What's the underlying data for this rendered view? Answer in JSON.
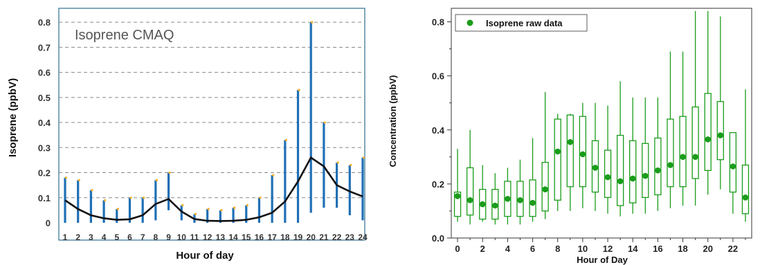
{
  "chart_data": [
    {
      "type": "line",
      "title": "Isoprene CMAQ",
      "xlabel": "Hour of day",
      "ylabel": "Isoprene (ppbV)",
      "ylim": [
        0,
        0.85
      ],
      "yticks": [
        "0",
        "0.1",
        "0.2",
        "0.3",
        "0.4",
        "0.5",
        "0.6",
        "0.7",
        "0.8"
      ],
      "x": [
        1,
        2,
        3,
        4,
        5,
        6,
        7,
        8,
        9,
        10,
        11,
        12,
        13,
        14,
        15,
        16,
        17,
        18,
        19,
        20,
        21,
        22,
        23,
        24
      ],
      "xticks": [
        "1",
        "2",
        "3",
        "4",
        "5",
        "6",
        "7",
        "8",
        "9",
        "10",
        "11",
        "12",
        "13",
        "14",
        "15",
        "16",
        "17",
        "18",
        "19",
        "20",
        "21",
        "22",
        "23",
        "24"
      ],
      "grid": "horizontal dashed",
      "range_bars": {
        "color": "#1f6fb5",
        "high": [
          0.18,
          0.17,
          0.13,
          0.09,
          0.055,
          0.1,
          0.1,
          0.17,
          0.2,
          0.07,
          0.035,
          0.055,
          0.05,
          0.06,
          0.07,
          0.1,
          0.19,
          0.33,
          0.53,
          0.8,
          0.4,
          0.24,
          0.23,
          0.26
        ],
        "low": [
          0.0,
          0.0,
          0.0,
          0.0,
          0.0,
          0.0,
          0.0,
          0.01,
          0.05,
          0.01,
          0.0,
          0.0,
          0.0,
          0.0,
          0.0,
          0.0,
          0.0,
          0.0,
          0.0,
          0.04,
          0.06,
          0.06,
          0.03,
          0.01
        ]
      },
      "mean_line": {
        "color": "#111111",
        "values": [
          0.09,
          0.055,
          0.03,
          0.018,
          0.012,
          0.014,
          0.03,
          0.075,
          0.095,
          0.045,
          0.015,
          0.008,
          0.007,
          0.008,
          0.012,
          0.022,
          0.04,
          0.085,
          0.165,
          0.26,
          0.225,
          0.15,
          0.125,
          0.105
        ]
      }
    },
    {
      "type": "box",
      "xlabel": "Hour of Day",
      "ylabel": "Concentration (ppbV)",
      "xlim": [
        -0.5,
        23.5
      ],
      "ylim": [
        0.0,
        0.85
      ],
      "yticks": [
        "0.0",
        "0.2",
        "0.4",
        "0.6",
        "0.8"
      ],
      "xticks": [
        "0",
        "2",
        "4",
        "6",
        "8",
        "10",
        "12",
        "14",
        "16",
        "18",
        "20",
        "22"
      ],
      "legend": {
        "label": "Isoprene raw data",
        "placement": "top-left"
      },
      "color": "#1a9c1a",
      "x": [
        0,
        1,
        2,
        3,
        4,
        5,
        6,
        7,
        8,
        9,
        10,
        11,
        12,
        13,
        14,
        15,
        16,
        17,
        18,
        19,
        20,
        21,
        22,
        23
      ],
      "whisker_low": [
        0.06,
        0.05,
        0.06,
        0.05,
        0.05,
        0.05,
        0.06,
        0.07,
        0.1,
        0.1,
        0.11,
        0.1,
        0.09,
        0.08,
        0.09,
        0.09,
        0.1,
        0.11,
        0.12,
        0.12,
        0.16,
        0.18,
        0.09,
        0.06
      ],
      "q1": [
        0.08,
        0.085,
        0.07,
        0.07,
        0.08,
        0.08,
        0.08,
        0.1,
        0.14,
        0.19,
        0.19,
        0.17,
        0.15,
        0.12,
        0.13,
        0.15,
        0.16,
        0.19,
        0.19,
        0.22,
        0.25,
        0.29,
        0.17,
        0.09
      ],
      "median": [
        0.155,
        0.14,
        0.125,
        0.12,
        0.145,
        0.14,
        0.13,
        0.18,
        0.32,
        0.355,
        0.31,
        0.26,
        0.225,
        0.21,
        0.22,
        0.23,
        0.25,
        0.27,
        0.3,
        0.3,
        0.365,
        0.38,
        0.265,
        0.15
      ],
      "q3": [
        0.17,
        0.26,
        0.18,
        0.18,
        0.21,
        0.21,
        0.215,
        0.28,
        0.44,
        0.455,
        0.45,
        0.36,
        0.325,
        0.38,
        0.36,
        0.35,
        0.37,
        0.44,
        0.45,
        0.485,
        0.535,
        0.505,
        0.39,
        0.27
      ],
      "whisker_high": [
        0.33,
        0.4,
        0.27,
        0.24,
        0.26,
        0.29,
        0.37,
        0.54,
        0.46,
        0.46,
        0.5,
        0.5,
        0.49,
        0.58,
        0.52,
        0.52,
        0.52,
        0.69,
        0.69,
        0.84,
        0.84,
        0.82,
        0.38,
        0.55
      ]
    }
  ]
}
